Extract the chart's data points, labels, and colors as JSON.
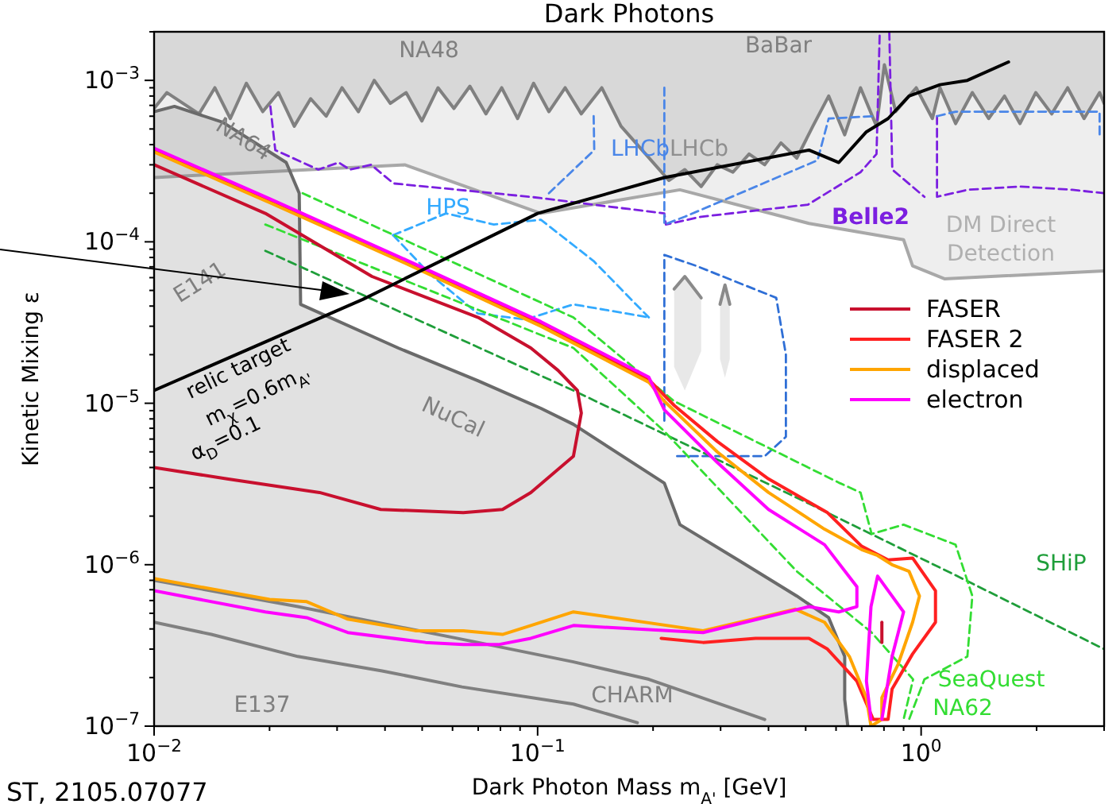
{
  "chart_data": {
    "type": "line",
    "title": "Dark Photons",
    "xlabel": "Dark Photon Mass m$_{A'}$ [GeV]",
    "ylabel": "Kinetic Mixing ε",
    "log": "xy",
    "legend": "right",
    "xlim": [
      0.01,
      3
    ],
    "ylim": [
      1e-07,
      0.002
    ],
    "xticks": [
      {
        "value": 0.01,
        "label": "10$^{−2}$"
      },
      {
        "value": 0.02,
        "label": null
      },
      {
        "value": 0.03,
        "label": null
      },
      {
        "value": 0.04,
        "label": null
      },
      {
        "value": 0.05,
        "label": null
      },
      {
        "value": 0.06,
        "label": null
      },
      {
        "value": 0.07,
        "label": null
      },
      {
        "value": 0.08,
        "label": null
      },
      {
        "value": 0.09,
        "label": null
      },
      {
        "value": 0.1,
        "label": "10$^{−1}$"
      },
      {
        "value": 0.2,
        "label": null
      },
      {
        "value": 0.3,
        "label": null
      },
      {
        "value": 0.4,
        "label": null
      },
      {
        "value": 0.5,
        "label": null
      },
      {
        "value": 0.6,
        "label": null
      },
      {
        "value": 0.7,
        "label": null
      },
      {
        "value": 0.8,
        "label": null
      },
      {
        "value": 0.9,
        "label": null
      },
      {
        "value": 1,
        "label": "10$^{0}$"
      },
      {
        "value": 2,
        "label": null
      },
      {
        "value": 3,
        "label": null
      }
    ],
    "yticks": [
      {
        "value": 1e-07,
        "label": "10$^{−7}$"
      },
      {
        "value": 2e-07,
        "label": null
      },
      {
        "value": 3e-07,
        "label": null
      },
      {
        "value": 4e-07,
        "label": null
      },
      {
        "value": 5e-07,
        "label": null
      },
      {
        "value": 6e-07,
        "label": null
      },
      {
        "value": 7e-07,
        "label": null
      },
      {
        "value": 8e-07,
        "label": null
      },
      {
        "value": 9e-07,
        "label": null
      },
      {
        "value": 1e-06,
        "label": "10$^{−6}$"
      },
      {
        "value": 2e-06,
        "label": null
      },
      {
        "value": 3e-06,
        "label": null
      },
      {
        "value": 4e-06,
        "label": null
      },
      {
        "value": 5e-06,
        "label": null
      },
      {
        "value": 6e-06,
        "label": null
      },
      {
        "value": 7e-06,
        "label": null
      },
      {
        "value": 8e-06,
        "label": null
      },
      {
        "value": 9e-06,
        "label": null
      },
      {
        "value": 1e-05,
        "label": "10$^{−5}$"
      },
      {
        "value": 2e-05,
        "label": null
      },
      {
        "value": 3e-05,
        "label": null
      },
      {
        "value": 4e-05,
        "label": null
      },
      {
        "value": 5e-05,
        "label": null
      },
      {
        "value": 6e-05,
        "label": null
      },
      {
        "value": 7e-05,
        "label": null
      },
      {
        "value": 8e-05,
        "label": null
      },
      {
        "value": 9e-05,
        "label": null
      },
      {
        "value": 0.0001,
        "label": "10$^{−4}$"
      },
      {
        "value": 0.0002,
        "label": null
      },
      {
        "value": 0.0003,
        "label": null
      },
      {
        "value": 0.0004,
        "label": null
      },
      {
        "value": 0.0005,
        "label": null
      },
      {
        "value": 0.0006,
        "label": null
      },
      {
        "value": 0.0007,
        "label": null
      },
      {
        "value": 0.0008,
        "label": null
      },
      {
        "value": 0.0009,
        "label": null
      },
      {
        "value": 0.001,
        "label": "10$^{−3}$"
      },
      {
        "value": 0.002,
        "label": null
      }
    ],
    "series": [
      {
        "color": "#a8a8a8",
        "x": [
          0.01,
          0.0188,
          0.045,
          0.102,
          0.235,
          0.51,
          0.9,
          0.95,
          1.15,
          3
        ],
        "values": [
          0.00025,
          0.00027,
          0.0003,
          0.00015,
          0.00021,
          0.00013,
          0.000103,
          7.1e-05,
          5.9e-05,
          6.6e-05
        ],
        "lower": [
          0.00025,
          0.00027,
          0.0003,
          0.00015,
          0.00021,
          0.00013,
          0.000103,
          7.1e-05,
          5.9e-05,
          6.6e-05
        ],
        "upper": [
          0.002,
          0.002,
          0.002,
          0.002,
          0.002,
          0.002,
          0.002,
          0.002,
          0.002,
          0.002
        ]
      },
      {
        "color": "#808080",
        "x": [
          0.01,
          0.0108,
          0.0119,
          0.0131,
          0.0144,
          0.0158,
          0.0174,
          0.0192,
          0.0211,
          0.0232,
          0.0256,
          0.0281,
          0.0309,
          0.0341,
          0.0375,
          0.0413,
          0.0454,
          0.0499,
          0.055,
          0.0605,
          0.0666,
          0.0733,
          0.0806,
          0.0887,
          0.0976,
          0.107,
          0.118,
          0.13,
          0.147,
          0.165,
          0.22,
          0.242,
          0.267,
          0.294,
          0.323,
          0.356,
          0.391,
          0.431,
          0.474,
          0.522,
          0.574,
          0.632,
          0.695,
          0.765,
          0.802,
          0.858,
          0.971,
          1.07,
          1.12,
          1.23,
          1.36,
          1.5,
          1.65,
          1.81,
          1.99,
          2.19,
          2.41,
          2.66,
          2.92,
          3
        ],
        "values": [
          0.00067,
          0.00084,
          0.00072,
          0.00062,
          0.0009,
          0.00058,
          0.00096,
          0.00064,
          0.00084,
          0.00052,
          0.00077,
          0.0006,
          0.0009,
          0.00064,
          0.001,
          0.00072,
          0.00084,
          0.00056,
          0.0009,
          0.00067,
          0.00092,
          0.00062,
          0.0009,
          0.00058,
          0.00096,
          0.00064,
          0.0009,
          0.00062,
          0.0009,
          0.00052,
          0.00024,
          0.00028,
          0.00022,
          0.0003,
          0.00027,
          0.00035,
          0.0003,
          0.00041,
          0.00033,
          0.00052,
          0.0008,
          0.00046,
          0.0009,
          0.00052,
          0.00125,
          0.00064,
          0.0009,
          0.00058,
          0.0009,
          0.00054,
          0.00084,
          0.00058,
          0.0008,
          0.00054,
          0.00084,
          0.00062,
          0.0009,
          0.00058,
          0.00084,
          0.00072
        ],
        "lower": [
          0.00067,
          0.00084,
          0.00072,
          0.00062,
          0.0009,
          0.00058,
          0.00096,
          0.00064,
          0.00084,
          0.00052,
          0.00077,
          0.0006,
          0.0009,
          0.00064,
          0.001,
          0.00072,
          0.00084,
          0.00056,
          0.0009,
          0.00067,
          0.00092,
          0.00062,
          0.0009,
          0.00058,
          0.00096,
          0.00064,
          0.0009,
          0.00062,
          0.0009,
          0.00052,
          0.00024,
          0.00028,
          0.00022,
          0.0003,
          0.00027,
          0.00035,
          0.0003,
          0.00041,
          0.00033,
          0.00052,
          0.0008,
          0.00046,
          0.0009,
          0.00052,
          0.00125,
          0.00064,
          0.0009,
          0.00058,
          0.0009,
          0.00054,
          0.00084,
          0.00058,
          0.0008,
          0.00054,
          0.00084,
          0.00062,
          0.0009,
          0.00058,
          0.00084,
          0.00072
        ],
        "upper": [
          0.002,
          0.002,
          0.002,
          0.002,
          0.002,
          0.002,
          0.002,
          0.002,
          0.002,
          0.002,
          0.002,
          0.002,
          0.002,
          0.002,
          0.002,
          0.002,
          0.002,
          0.002,
          0.002,
          0.002,
          0.002,
          0.002,
          0.002,
          0.002,
          0.002,
          0.002,
          0.002,
          0.002,
          0.002,
          0.002,
          0.002,
          0.002,
          0.002,
          0.002,
          0.002,
          0.002,
          0.002,
          0.002,
          0.002,
          0.002,
          0.002,
          0.002,
          0.002,
          0.002,
          0.002,
          0.002,
          0.002,
          0.002,
          0.002,
          0.002,
          0.002,
          0.002,
          0.002,
          0.002,
          0.002,
          0.002,
          0.002,
          0.002,
          0.002,
          0.002
        ]
      },
      {
        "color": "#6a6a6a",
        "x": [
          0.01,
          0.0113,
          0.0151,
          0.0221,
          0.0239,
          0.0241,
          0.0433,
          0.0698,
          0.102,
          0.124,
          0.214,
          0.235,
          0.333,
          0.474,
          0.574,
          0.632,
          0.632,
          0.644
        ],
        "values": [
          0.00064,
          0.00069,
          0.00055,
          0.00031,
          0.0002,
          4.1e-05,
          2.2e-05,
          1.38e-05,
          9.3e-06,
          7.4e-06,
          3.2e-06,
          1.77e-06,
          1.07e-06,
          6.4e-07,
          4.7e-07,
          2.7e-07,
          1.46e-07,
          1e-07
        ],
        "lower": [
          1e-07,
          1e-07,
          1e-07,
          1e-07,
          1e-07,
          1e-07,
          1e-07,
          1e-07,
          1e-07,
          1e-07,
          1e-07,
          1e-07,
          1e-07,
          1e-07,
          1e-07,
          1e-07,
          1e-07,
          1e-07
        ],
        "upper": [
          0.00064,
          0.00069,
          0.00055,
          0.00031,
          0.0002,
          4.1e-05,
          2.2e-05,
          1.38e-05,
          9.3e-06,
          7.4e-06,
          3.2e-06,
          1.77e-06,
          1.07e-06,
          6.4e-07,
          4.7e-07,
          2.7e-07,
          1.46e-07,
          1e-07
        ]
      },
      {
        "color": "#8a8a8a",
        "x": [
          0.227,
          0.242,
          0.267
        ],
        "values": [
          5.1e-05,
          6.1e-05,
          4.5e-05
        ],
        "lower": [
          1.68e-05,
          1.2e-05,
          2.1e-05
        ],
        "upper": [
          5.1e-05,
          6.1e-05,
          4.5e-05
        ]
      },
      {
        "color": "#8a8a8a",
        "x": [
          0.299,
          0.308,
          0.317
        ],
        "values": [
          4.1e-05,
          5.4e-05,
          4.1e-05
        ],
        "lower": [
          1.88e-05,
          1.44e-05,
          1.88e-05
        ],
        "upper": [
          4.1e-05,
          5.4e-05,
          4.1e-05
        ]
      },
      {
        "color": "#808080",
        "x": [
          0.01,
          0.0237,
          0.0698,
          0.124,
          0.195,
          0.391
        ],
        "values": [
          8e-07,
          5.5e-07,
          3.3e-07,
          2.5e-07,
          1.95e-07,
          1.1e-07
        ]
      },
      {
        "color": "#808080",
        "x": [
          0.01,
          0.0141,
          0.0237,
          0.0393,
          0.0635,
          0.124,
          0.182
        ],
        "values": [
          4.4e-07,
          3.7e-07,
          2.7e-07,
          2.2e-07,
          1.75e-07,
          1.37e-07,
          1.05e-07
        ]
      },
      {
        "color": "#7b1fe0",
        "line_style": "dashed",
        "x": [
          0.0201,
          0.0207,
          0.0268,
          0.0303,
          0.0324,
          0.0368,
          0.0421,
          0.0957,
          0.214,
          0.216,
          0.267,
          0.507,
          0.695,
          0.765,
          0.78
        ],
        "values": [
          0.00069,
          0.00037,
          0.00028,
          0.00031,
          0.00028,
          0.0003,
          0.00023,
          0.00019,
          0.00015,
          0.000128,
          0.000143,
          0.00017,
          0.00027,
          0.00035,
          0.002
        ]
      },
      {
        "color": "#7b1fe0",
        "line_style": "dashed",
        "x": [
          0.826,
          0.841,
          1.02
        ],
        "values": [
          0.002,
          0.00028,
          0.00019
        ]
      },
      {
        "color": "#7b1fe0",
        "line_style": "dashed",
        "x": [
          1.1,
          1.1,
          1.32,
          1.81,
          2.48,
          3
        ],
        "values": [
          0.0006,
          0.00019,
          0.00021,
          0.00022,
          0.00021,
          0.0002
        ]
      },
      {
        "color": "#4a86e8",
        "line_style": "dashed",
        "x": [
          0.107,
          0.1405,
          0.14
        ],
        "values": [
          0.0002,
          0.00037,
          0.0006
        ]
      },
      {
        "color": "#4a86e8",
        "line_style": "dashed",
        "x": [
          0.214,
          0.214,
          0.242,
          0.537,
          0.574,
          0.75
        ],
        "values": [
          0.0009,
          0.000128,
          0.000143,
          0.00032,
          0.00058,
          0.0006
        ]
      },
      {
        "color": "#4a86e8",
        "line_style": "dashed",
        "x": [
          1.1,
          1.23,
          2.92,
          2.92
        ],
        "values": [
          0.0006,
          0.00064,
          0.00064,
          0.00046
        ]
      },
      {
        "color": "#33aaff",
        "line_style": "dashed",
        "x": [
          0.042,
          0.0524,
          0.0698,
          0.0931,
          0.124,
          0.195
        ],
        "values": [
          0.00011,
          6.3e-05,
          3.6e-05,
          3.3e-05,
          4.1e-05,
          3.4e-05
        ]
      },
      {
        "color": "#33aaff",
        "line_style": "dashed",
        "x": [
          0.042,
          0.0577,
          0.0769,
          0.102,
          0.14,
          0.195
        ],
        "values": [
          0.00011,
          0.00015,
          0.000128,
          0.000137,
          7.6e-05,
          3.4e-05
        ]
      },
      {
        "color": "#2f6fd6",
        "line_style": "dashed",
        "x": [
          0.214,
          0.214,
          0.259,
          0.419,
          0.444,
          0.444,
          0.391,
          0.227
        ],
        "values": [
          7.8e-06,
          8.3e-05,
          7.1e-05,
          4.5e-05,
          2e-05,
          6.2e-06,
          4.7e-06,
          4.7e-06
        ]
      },
      {
        "color": "#1f9e3a",
        "line_style": "dashed",
        "x": [
          0.0195,
          0.124,
          0.474,
          1.23,
          3
        ],
        "values": [
          8.8e-05,
          1.2e-05,
          2.6e-06,
          8.6e-07,
          3e-07
        ]
      },
      {
        "color": "#33dd33",
        "line_style": "dashed",
        "x": [
          0.0244,
          0.124,
          0.227,
          0.614,
          0.695,
          0.743,
          0.9,
          1.23,
          1.36,
          1.32,
          1.02,
          0.93
        ],
        "values": [
          0.0002,
          3.4e-05,
          1.03e-05,
          3.2e-06,
          2.8e-06,
          1.55e-06,
          1.77e-06,
          1.33e-06,
          6.4e-07,
          2.7e-07,
          1.95e-07,
          1.1e-07
        ]
      },
      {
        "color": "#33dd33",
        "line_style": "dashed",
        "x": [
          0.0195,
          0.124,
          0.214,
          0.474,
          0.743,
          0.953,
          0.9
        ],
        "values": [
          0.000128,
          2.2e-05,
          6.7e-06,
          9.1e-07,
          3.8e-07,
          1.95e-07,
          1.1e-07
        ]
      },
      {
        "name": "FASER",
        "color": "#c8102e",
        "x": [
          0.01,
          0.0155,
          0.027,
          0.039,
          0.064,
          0.081,
          0.096,
          0.124,
          0.13,
          0.127,
          0.113,
          0.096,
          0.07,
          0.037,
          0.0195,
          0.01
        ],
        "values": [
          4e-06,
          3.4e-06,
          2.8e-06,
          2.2e-06,
          2.1e-06,
          2.2e-06,
          2.8e-06,
          4.7e-06,
          8.7e-06,
          1.2e-05,
          1.6e-05,
          2.2e-05,
          3.4e-05,
          6.1e-05,
          0.00015,
          0.0003
        ]
      },
      {
        "color": "#c8102e",
        "x": [
          0.79,
          0.79
        ],
        "values": [
          4.4e-07,
          3.3e-07
        ]
      },
      {
        "name": "FASER 2",
        "color": "#ff2020",
        "x": [
          0.01,
          0.02,
          0.045,
          0.102,
          0.195,
          0.227,
          0.294,
          0.4,
          0.57,
          0.7,
          0.82,
          0.95,
          1.09,
          1.09,
          0.95,
          0.84,
          0.82,
          0.75,
          0.68,
          0.57,
          0.51,
          0.37,
          0.27,
          0.21
        ],
        "values": [
          0.00037,
          0.00018,
          7.6e-05,
          3.1e-05,
          1.4e-05,
          9.7e-06,
          5.8e-06,
          3.4e-06,
          2.1e-06,
          1.3e-06,
          1.07e-06,
          1.1e-06,
          6.9e-07,
          4.4e-07,
          2.8e-07,
          1.7e-07,
          1.1e-07,
          1.1e-07,
          1.9e-07,
          3e-07,
          3.5e-07,
          3.5e-07,
          3.3e-07,
          3.5e-07
        ]
      },
      {
        "name": "displaced",
        "color": "#ffa500",
        "x": [
          0.01,
          0.02,
          0.045,
          0.102,
          0.195,
          0.214,
          0.294,
          0.4,
          0.56,
          0.7,
          0.77,
          0.84,
          0.93,
          0.99,
          0.95,
          0.87,
          0.79,
          0.79,
          0.74,
          0.72,
          0.65,
          0.56,
          0.47,
          0.27,
          0.124,
          0.096,
          0.081,
          0.064,
          0.048,
          0.032,
          0.025,
          0.02,
          0.01
        ],
        "values": [
          0.00036,
          0.000175,
          7.4e-05,
          3e-05,
          1.35e-05,
          1.03e-05,
          5e-06,
          2.8e-06,
          1.66e-06,
          1.24e-06,
          1.14e-06,
          1e-06,
          9.1e-07,
          6.4e-07,
          4.4e-07,
          2.4e-07,
          1.5e-07,
          1.1e-07,
          1e-07,
          1.5e-07,
          2.7e-07,
          4.4e-07,
          5.3e-07,
          3.9e-07,
          5.1e-07,
          4.2e-07,
          3.7e-07,
          3.9e-07,
          3.9e-07,
          4.6e-07,
          5.9e-07,
          6.1e-07,
          8.2e-07
        ]
      },
      {
        "name": "electron",
        "color": "#ff00ff",
        "x": [
          0.01,
          0.02,
          0.045,
          0.102,
          0.195,
          0.214,
          0.294,
          0.4,
          0.56,
          0.68,
          0.68,
          0.61,
          0.51,
          0.27,
          0.124,
          0.096,
          0.079,
          0.064,
          0.051,
          0.032,
          0.025,
          0.0195,
          0.01
        ],
        "values": [
          0.00038,
          0.000185,
          7.8e-05,
          3.2e-05,
          1.45e-05,
          9.1e-06,
          4.3e-06,
          2.2e-06,
          1.33e-06,
          7.3e-07,
          5.5e-07,
          5.1e-07,
          5.5e-07,
          3.8e-07,
          4.2e-07,
          3.5e-07,
          3.2e-07,
          3.2e-07,
          3.3e-07,
          3.8e-07,
          4.7e-07,
          5.1e-07,
          6.9e-07
        ]
      },
      {
        "color": "#ff00ff",
        "x": [
          0.74,
          0.72,
          0.74,
          0.77,
          0.9,
          0.84,
          0.79
        ],
        "values": [
          1.1e-07,
          1.9e-07,
          5.5e-07,
          8.5e-07,
          5.1e-07,
          2.7e-07,
          1.1e-07
        ]
      },
      {
        "color": "#000000",
        "x": [
          0.01,
          0.035,
          0.1,
          0.214,
          0.51,
          0.61,
          0.72,
          0.82,
          0.93,
          1.12,
          1.32,
          1.69
        ],
        "values": [
          1.2e-05,
          4.4e-05,
          0.00015,
          0.00025,
          0.00037,
          0.00031,
          0.00048,
          0.00058,
          0.0008,
          0.00094,
          0.001,
          0.0013
        ]
      }
    ],
    "annotations": [
      "NA48",
      "BaBar",
      "NA64",
      "LHCb",
      "LHCb",
      "HPS",
      "Belle2",
      "DM Direct",
      "Detection",
      "E141",
      "relic target",
      "m$_{χ}$=0.6m$_{A'}$",
      "α$_{D}$=0.1",
      "NuCal",
      "SHiP",
      "SeaQuest",
      "NA62",
      "E137",
      "CHARM",
      "ST, 2105.07077"
    ]
  }
}
